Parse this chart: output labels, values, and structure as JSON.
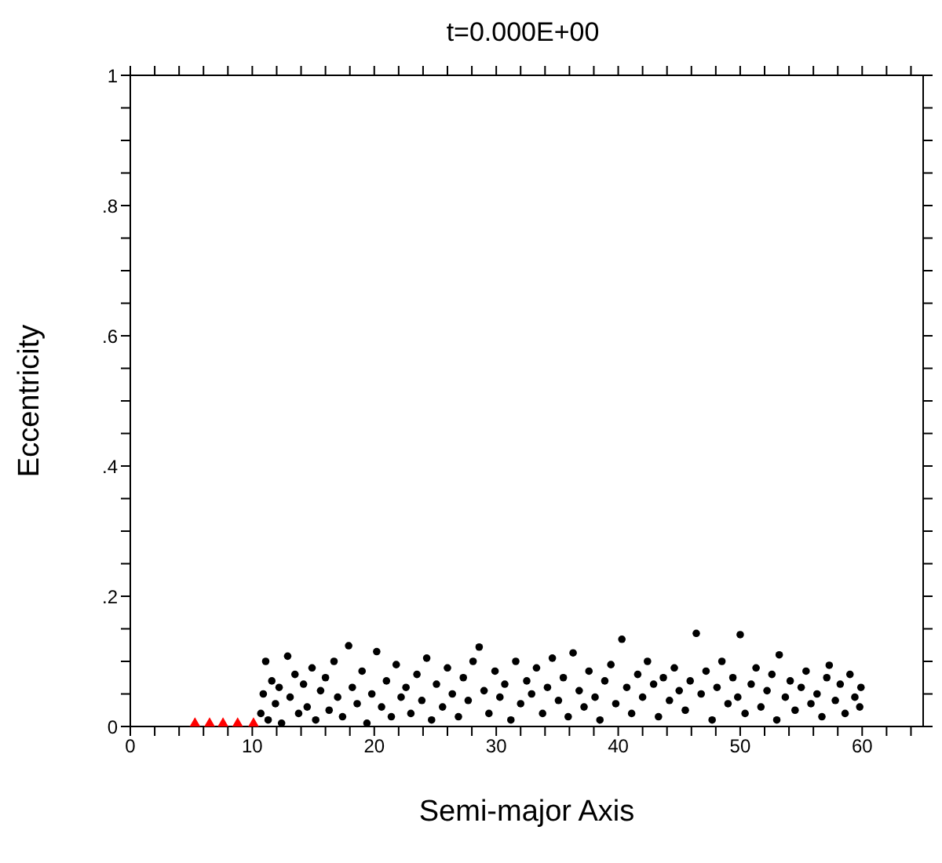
{
  "chart_data": {
    "type": "scatter",
    "title": "t=0.000E+00",
    "xlabel": "Semi-major Axis",
    "ylabel": "Eccentricity",
    "xlim": [
      0,
      65
    ],
    "xticks": [
      0,
      {
        "value": 2,
        "label": null
      },
      {
        "value": 4,
        "label": null
      },
      {
        "value": 6,
        "label": null
      },
      {
        "value": 8,
        "label": null
      },
      10,
      {
        "value": 12,
        "label": null
      },
      {
        "value": 14,
        "label": null
      },
      {
        "value": 16,
        "label": null
      },
      {
        "value": 18,
        "label": null
      },
      20,
      {
        "value": 22,
        "label": null
      },
      {
        "value": 24,
        "label": null
      },
      {
        "value": 26,
        "label": null
      },
      {
        "value": 28,
        "label": null
      },
      30,
      {
        "value": 32,
        "label": null
      },
      {
        "value": 34,
        "label": null
      },
      {
        "value": 36,
        "label": null
      },
      {
        "value": 38,
        "label": null
      },
      40,
      {
        "value": 42,
        "label": null
      },
      {
        "value": 44,
        "label": null
      },
      {
        "value": 46,
        "label": null
      },
      {
        "value": 48,
        "label": null
      },
      50,
      {
        "value": 52,
        "label": null
      },
      {
        "value": 54,
        "label": null
      },
      {
        "value": 56,
        "label": null
      },
      {
        "value": 58,
        "label": null
      },
      60,
      {
        "value": 62,
        "label": null
      },
      {
        "value": 64,
        "label": null
      }
    ],
    "ylim": [
      0,
      1
    ],
    "yticks": [
      0,
      {
        "value": 0.05,
        "label": null
      },
      {
        "value": 0.1,
        "label": null
      },
      {
        "value": 0.15,
        "label": null
      },
      {
        "value": 0.2,
        "label": ".2"
      },
      {
        "value": 0.25,
        "label": null
      },
      {
        "value": 0.3,
        "label": null
      },
      {
        "value": 0.35,
        "label": null
      },
      {
        "value": 0.4,
        "label": ".4"
      },
      {
        "value": 0.45,
        "label": null
      },
      {
        "value": 0.5,
        "label": null
      },
      {
        "value": 0.55,
        "label": null
      },
      {
        "value": 0.6,
        "label": ".6"
      },
      {
        "value": 0.65,
        "label": null
      },
      {
        "value": 0.7,
        "label": null
      },
      {
        "value": 0.75,
        "label": null
      },
      {
        "value": 0.8,
        "label": ".8"
      },
      {
        "value": 0.85,
        "label": null
      },
      {
        "value": 0.9,
        "label": null
      },
      {
        "value": 0.95,
        "label": null
      },
      1
    ],
    "grid": false,
    "legend": false,
    "series": [
      {
        "color": "#000000",
        "marker": "circle",
        "x": [
          10.7,
          10.9,
          11.1,
          11.3,
          11.6,
          11.9,
          12.2,
          12.4,
          12.9,
          13.1,
          13.5,
          13.8,
          14.2,
          14.5,
          14.9,
          15.2,
          15.6,
          16.0,
          16.3,
          16.7,
          17.0,
          17.4,
          17.9,
          18.2,
          18.6,
          19.0,
          19.4,
          19.8,
          20.2,
          20.6,
          21.0,
          21.4,
          21.8,
          22.2,
          22.6,
          23.0,
          23.5,
          23.9,
          24.3,
          24.7,
          25.1,
          25.6,
          26.0,
          26.4,
          26.9,
          27.3,
          27.7,
          28.1,
          28.6,
          29.0,
          29.4,
          29.9,
          30.3,
          30.7,
          31.2,
          31.6,
          32.0,
          32.5,
          32.9,
          33.3,
          33.8,
          34.2,
          34.6,
          35.1,
          35.5,
          35.9,
          36.3,
          36.8,
          37.2,
          37.6,
          38.1,
          38.5,
          38.9,
          39.4,
          39.8,
          40.3,
          40.7,
          41.1,
          41.6,
          42.0,
          42.4,
          42.9,
          43.3,
          43.7,
          44.2,
          44.6,
          45.0,
          45.5,
          45.9,
          46.4,
          46.8,
          47.2,
          47.7,
          48.1,
          48.5,
          49.0,
          49.4,
          49.8,
          50.0,
          50.4,
          50.9,
          51.3,
          51.7,
          52.2,
          52.6,
          53.0,
          53.2,
          53.7,
          54.1,
          54.5,
          55.0,
          55.4,
          55.8,
          56.3,
          56.7,
          57.1,
          57.3,
          57.8,
          58.2,
          58.6,
          59.0,
          59.4,
          59.8,
          59.9
        ],
        "values": [
          0.02,
          0.05,
          0.1,
          0.01,
          0.07,
          0.035,
          0.06,
          0.005,
          0.108,
          0.045,
          0.08,
          0.02,
          0.065,
          0.03,
          0.09,
          0.01,
          0.055,
          0.075,
          0.025,
          0.1,
          0.045,
          0.015,
          0.124,
          0.06,
          0.035,
          0.085,
          0.005,
          0.05,
          0.115,
          0.03,
          0.07,
          0.015,
          0.095,
          0.045,
          0.06,
          0.02,
          0.08,
          0.04,
          0.105,
          0.01,
          0.065,
          0.03,
          0.09,
          0.05,
          0.015,
          0.075,
          0.04,
          0.1,
          0.122,
          0.055,
          0.02,
          0.085,
          0.045,
          0.065,
          0.01,
          0.1,
          0.035,
          0.07,
          0.05,
          0.09,
          0.02,
          0.06,
          0.105,
          0.04,
          0.075,
          0.015,
          0.113,
          0.055,
          0.03,
          0.085,
          0.045,
          0.01,
          0.07,
          0.095,
          0.035,
          0.134,
          0.06,
          0.02,
          0.08,
          0.045,
          0.1,
          0.065,
          0.015,
          0.075,
          0.04,
          0.09,
          0.055,
          0.025,
          0.07,
          0.143,
          0.05,
          0.085,
          0.01,
          0.06,
          0.1,
          0.035,
          0.075,
          0.045,
          0.141,
          0.02,
          0.065,
          0.09,
          0.03,
          0.055,
          0.08,
          0.01,
          0.11,
          0.045,
          0.07,
          0.025,
          0.06,
          0.085,
          0.035,
          0.05,
          0.015,
          0.075,
          0.094,
          0.04,
          0.065,
          0.02,
          0.08,
          0.045,
          0.03,
          0.06
        ]
      },
      {
        "type": "scatter",
        "color": "#ff0000",
        "marker": "triangle",
        "x": [
          5.3,
          6.5,
          7.6,
          8.8,
          10.1
        ],
        "values": [
          0,
          0,
          0,
          0,
          0
        ]
      }
    ]
  }
}
